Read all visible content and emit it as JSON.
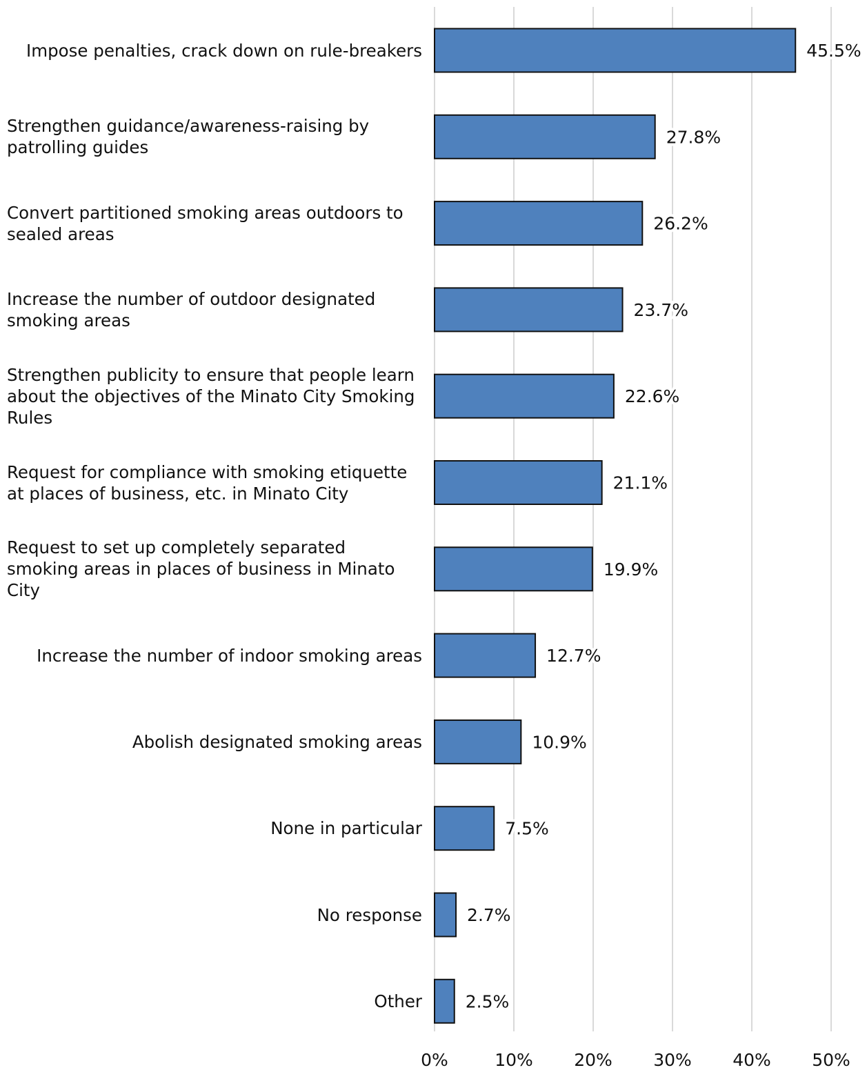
{
  "chart_data": {
    "type": "bar",
    "orientation": "horizontal",
    "categories": [
      "Impose penalties, crack down on rule-breakers",
      "Strengthen guidance/awareness-raising by patrolling guides",
      "Convert partitioned smoking areas outdoors to sealed areas",
      "Increase the number of outdoor designated smoking areas",
      "Strengthen publicity to ensure that people learn about the objectives of the Minato City Smoking Rules",
      "Request for compliance with smoking etiquette at places of business, etc. in Minato City",
      "Request to set up completely separated smoking areas in places of business in Minato City",
      "Increase the number of indoor smoking areas",
      "Abolish designated smoking areas",
      "None in particular",
      "No response",
      "Other"
    ],
    "values": [
      45.5,
      27.8,
      26.2,
      23.7,
      22.6,
      21.1,
      19.9,
      12.7,
      10.9,
      7.5,
      2.7,
      2.5
    ],
    "value_labels": [
      "45.5%",
      "27.8%",
      "26.2%",
      "23.7%",
      "22.6%",
      "21.1%",
      "19.9%",
      "12.7%",
      "10.9%",
      "7.5%",
      "2.7%",
      "2.5%"
    ],
    "color": "#4f81bd",
    "xlim": [
      0,
      50
    ],
    "xticks": [
      {
        "value": 0,
        "label": "0%"
      },
      {
        "value": 10,
        "label": "10%"
      },
      {
        "value": 20,
        "label": "20%"
      },
      {
        "value": 30,
        "label": "30%"
      },
      {
        "value": 40,
        "label": "40%"
      },
      {
        "value": 50,
        "label": "50%"
      }
    ],
    "grid": true
  }
}
